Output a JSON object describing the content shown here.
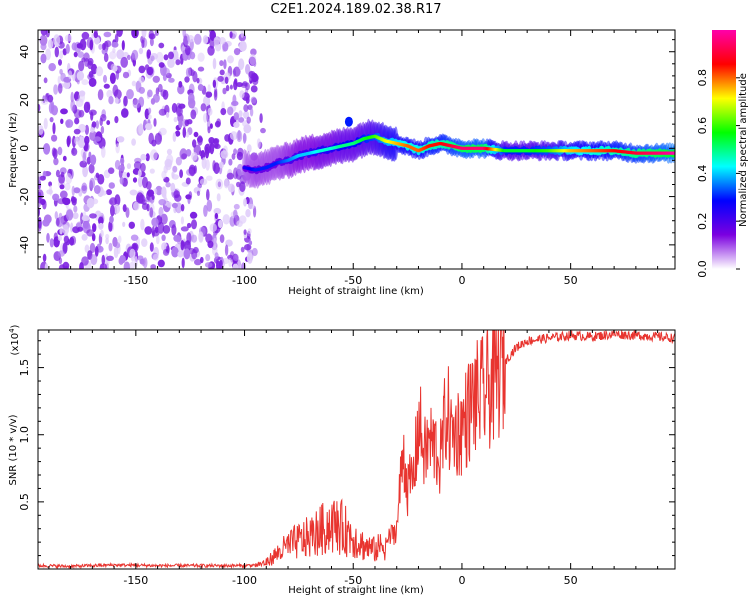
{
  "figure": {
    "title": "C2E1.2024.189.02.38.R17"
  },
  "colors": {
    "snr_line": "#e8342f",
    "frame": "#000000"
  },
  "chart_data": [
    {
      "type": "heatmap",
      "title": "C2E1.2024.189.02.38.R17",
      "xlabel": "Height of straight line (km)",
      "ylabel": "Frequency (Hz)",
      "xlim": [
        -195,
        98
      ],
      "ylim": [
        -50,
        49
      ],
      "xticks": [
        -150,
        -100,
        -50,
        0,
        50
      ],
      "xtick_labels": [
        "-150",
        "-100",
        "-50",
        "0",
        "50"
      ],
      "yticks": [
        -40,
        -20,
        0,
        20,
        40
      ],
      "ytick_labels": [
        "-40",
        "-20",
        "0",
        "20",
        "40"
      ],
      "colorbar": {
        "label": "Normalized spectral amplitude",
        "range": [
          0,
          1
        ],
        "ticks": [
          0.0,
          0.2,
          0.4,
          0.6,
          0.8
        ],
        "tick_labels": [
          "0.0",
          "0.2",
          "0.4",
          "0.6",
          "0.8"
        ],
        "colormap": [
          "#ffffff",
          "#7b00e0",
          "#0000ff",
          "#00ffff",
          "#00ff00",
          "#ffff00",
          "#ff0000",
          "#ff00aa"
        ]
      },
      "noise_region_x": [
        -195,
        -95
      ],
      "ridge": {
        "x": [
          -100,
          -95,
          -90,
          -85,
          -80,
          -75,
          -70,
          -65,
          -60,
          -55,
          -50,
          -45,
          -40,
          -35,
          -30,
          -25,
          -20,
          -15,
          -10,
          -5,
          0,
          5,
          10,
          20,
          30,
          40,
          50,
          60,
          70,
          80,
          90,
          98
        ],
        "frequency_hz": [
          -8,
          -9,
          -8,
          -6,
          -5,
          -3,
          -2,
          -1,
          0,
          1,
          2,
          4,
          5,
          3,
          2,
          1,
          -1,
          1,
          2,
          1,
          0,
          0,
          0,
          -1,
          -1,
          -1,
          -1,
          -1,
          -1,
          -2,
          -2,
          -2
        ],
        "amplitude": [
          0.25,
          0.3,
          0.3,
          0.3,
          0.35,
          0.4,
          0.4,
          0.45,
          0.45,
          0.5,
          0.5,
          0.55,
          0.6,
          0.7,
          0.75,
          0.8,
          0.8,
          0.85,
          0.85,
          0.9,
          0.95,
          0.95,
          0.95,
          0.55,
          0.55,
          0.6,
          0.75,
          0.8,
          0.85,
          0.9,
          0.95,
          1.0
        ]
      }
    },
    {
      "type": "line",
      "xlabel": "Height of straight line (km)",
      "ylabel": "SNR (10 * v/v)",
      "multiplier": "(x10",
      "multiplier_exp": "4",
      "xlim": [
        -195,
        98
      ],
      "ylim": [
        0,
        17800
      ],
      "xticks": [
        -150,
        -100,
        -50,
        0,
        50
      ],
      "xtick_labels": [
        "-150",
        "-100",
        "-50",
        "0",
        "50"
      ],
      "yticks": [
        5000,
        10000,
        15000
      ],
      "ytick_labels": [
        "0.5",
        "1.0",
        "1.5"
      ],
      "series": [
        {
          "x": [
            -195,
            -180,
            -160,
            -140,
            -120,
            -100,
            -95,
            -90,
            -85,
            -80,
            -75,
            -70,
            -65,
            -60,
            -55,
            -50,
            -45,
            -40,
            -35,
            -30,
            -27,
            -25,
            -22,
            -20,
            -17,
            -15,
            -12,
            -10,
            -7,
            -5,
            0,
            5,
            10,
            15,
            18,
            20,
            25,
            30,
            40,
            50,
            60,
            70,
            80,
            90,
            98
          ],
          "y": [
            250,
            200,
            300,
            250,
            250,
            250,
            300,
            500,
            1200,
            1800,
            2200,
            2500,
            3000,
            3500,
            3200,
            2500,
            1800,
            1500,
            2000,
            3000,
            9000,
            6000,
            7000,
            11000,
            8500,
            9500,
            9000,
            8000,
            12000,
            10000,
            10500,
            12500,
            13000,
            14000,
            15000,
            15500,
            16500,
            17000,
            17200,
            17400,
            17300,
            17500,
            17400,
            17300,
            17200
          ]
        }
      ]
    }
  ]
}
